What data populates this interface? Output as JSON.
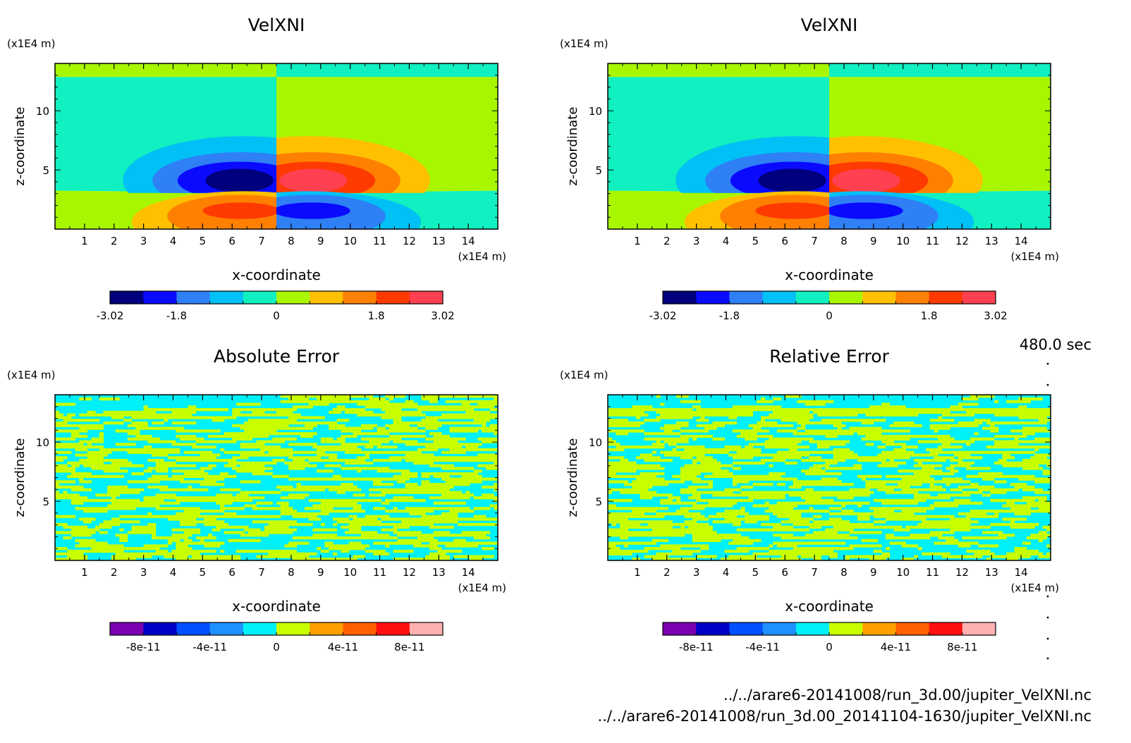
{
  "time_label": "480.0 sec",
  "files": [
    "../../arare6-20141008/run_3d.00/jupiter_VelXNI.nc",
    "../../arare6-20141008/run_3d.00_20141104-1630/jupiter_VelXNI.nc"
  ],
  "chart_data": [
    {
      "type": "heatmap",
      "title": "VelXNI",
      "xlabel": "x-coordinate",
      "ylabel": "z-coordinate",
      "x_unit": "(x1E4 m)",
      "y_unit": "(x1E4 m)",
      "x_ticks": [
        "1",
        "2",
        "3",
        "4",
        "5",
        "6",
        "7",
        "8",
        "9",
        "10",
        "11",
        "12",
        "13",
        "14"
      ],
      "y_ticks": [
        "5",
        "10"
      ],
      "xlim": [
        0,
        15
      ],
      "ylim": [
        0,
        14
      ],
      "pattern": "dipole",
      "colorbar": {
        "labels": [
          "-3.02",
          "-1.8",
          "0",
          "1.8",
          "3.02"
        ],
        "colors": [
          "#00007e",
          "#0a0aff",
          "#2f7ff5",
          "#00c0f5",
          "#10f0c0",
          "#a8f700",
          "#ffc000",
          "#ff8000",
          "#ff3a00",
          "#ff4050"
        ]
      }
    },
    {
      "type": "heatmap",
      "title": "VelXNI",
      "xlabel": "x-coordinate",
      "ylabel": "z-coordinate",
      "x_unit": "(x1E4 m)",
      "y_unit": "(x1E4 m)",
      "x_ticks": [
        "1",
        "2",
        "3",
        "4",
        "5",
        "6",
        "7",
        "8",
        "9",
        "10",
        "11",
        "12",
        "13",
        "14"
      ],
      "y_ticks": [
        "5",
        "10"
      ],
      "xlim": [
        0,
        15
      ],
      "ylim": [
        0,
        14
      ],
      "pattern": "dipole",
      "colorbar": {
        "labels": [
          "-3.02",
          "-1.8",
          "0",
          "1.8",
          "3.02"
        ],
        "colors": [
          "#00007e",
          "#0a0aff",
          "#2f7ff5",
          "#00c0f5",
          "#10f0c0",
          "#a8f700",
          "#ffc000",
          "#ff8000",
          "#ff3a00",
          "#ff4050"
        ]
      }
    },
    {
      "type": "heatmap",
      "title": "Absolute Error",
      "xlabel": "x-coordinate",
      "ylabel": "z-coordinate",
      "x_unit": "(x1E4 m)",
      "y_unit": "(x1E4 m)",
      "x_ticks": [
        "1",
        "2",
        "3",
        "4",
        "5",
        "6",
        "7",
        "8",
        "9",
        "10",
        "11",
        "12",
        "13",
        "14"
      ],
      "y_ticks": [
        "5",
        "10"
      ],
      "xlim": [
        0,
        15
      ],
      "ylim": [
        0,
        14
      ],
      "pattern": "noise",
      "colorbar": {
        "labels": [
          "-8e-11",
          "-4e-11",
          "0",
          "4e-11",
          "8e-11"
        ],
        "colors": [
          "#7b00b0",
          "#0000c8",
          "#0050ff",
          "#1e90ff",
          "#00f0f8",
          "#c8ff00",
          "#ffa000",
          "#ff6000",
          "#ff1010",
          "#ffb0b0"
        ]
      }
    },
    {
      "type": "heatmap",
      "title": "Relative Error",
      "xlabel": "x-coordinate",
      "ylabel": "z-coordinate",
      "x_unit": "(x1E4 m)",
      "y_unit": "(x1E4 m)",
      "x_ticks": [
        "1",
        "2",
        "3",
        "4",
        "5",
        "6",
        "7",
        "8",
        "9",
        "10",
        "11",
        "12",
        "13",
        "14"
      ],
      "y_ticks": [
        "5",
        "10"
      ],
      "xlim": [
        0,
        15
      ],
      "ylim": [
        0,
        14
      ],
      "pattern": "noise",
      "colorbar": {
        "labels": [
          "-8e-11",
          "-4e-11",
          "0",
          "4e-11",
          "8e-11"
        ],
        "colors": [
          "#7b00b0",
          "#0000c8",
          "#0050ff",
          "#1e90ff",
          "#00f0f8",
          "#c8ff00",
          "#ffa000",
          "#ff6000",
          "#ff1010",
          "#ffb0b0"
        ]
      }
    }
  ]
}
